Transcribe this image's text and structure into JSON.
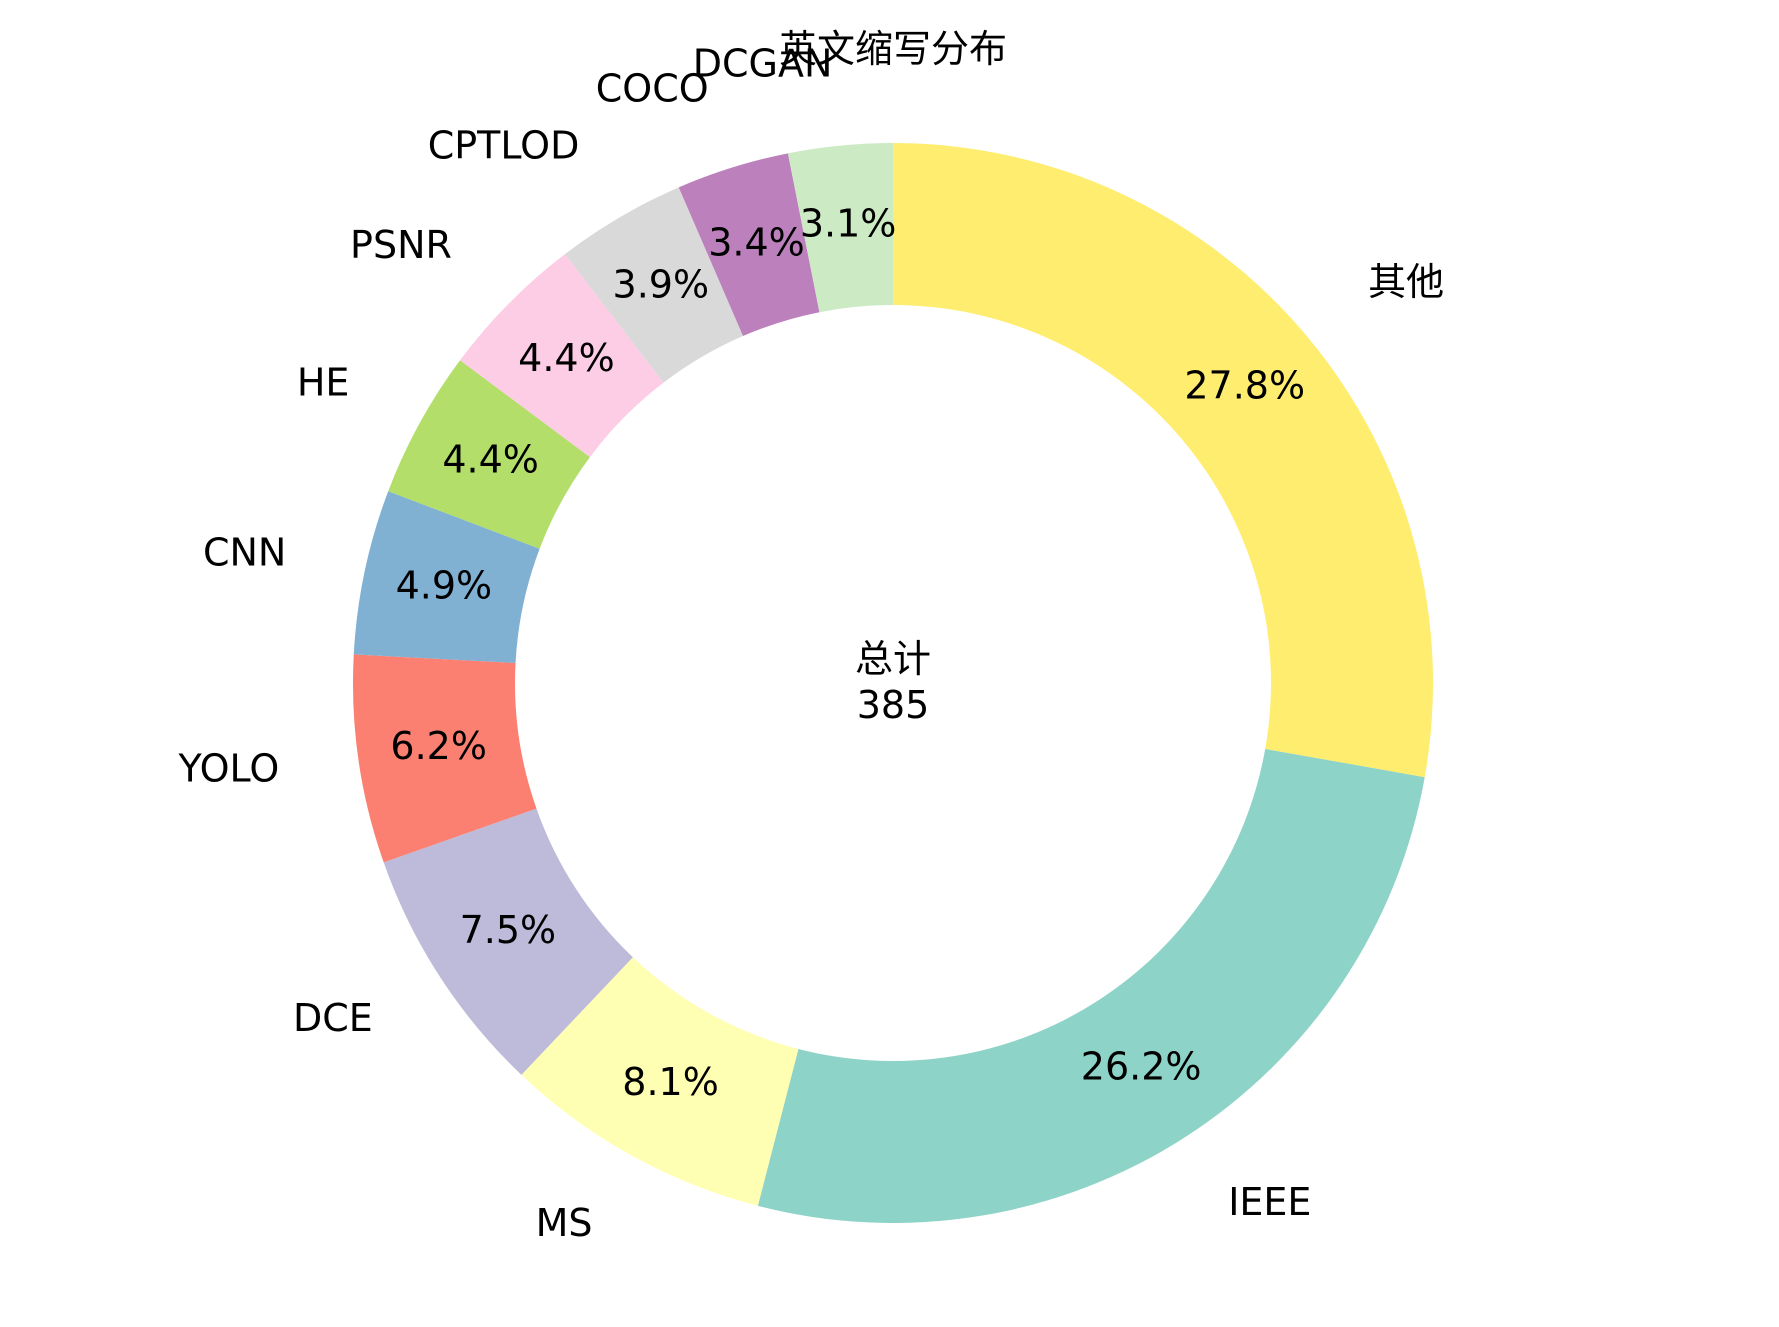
{
  "chart_data": {
    "type": "pie",
    "variant": "donut",
    "title": "英文缩写分布",
    "center_label": "总计",
    "total": "385",
    "categories": [
      "其他",
      "IEEE",
      "MS",
      "DCE",
      "YOLO",
      "CNN",
      "HE",
      "PSNR",
      "CPTLOD",
      "COCO",
      "DCGAN"
    ],
    "values": [
      107,
      101,
      31,
      29,
      24,
      19,
      17,
      17,
      15,
      13,
      12
    ],
    "percent_labels": [
      "27.8%",
      "26.2%",
      "8.1%",
      "7.5%",
      "6.2%",
      "4.9%",
      "4.4%",
      "4.4%",
      "3.9%",
      "3.4%",
      "3.1%"
    ],
    "colors": [
      "#ffed6f",
      "#8dd3c7",
      "#ffffb3",
      "#bebada",
      "#fb8072",
      "#80b1d3",
      "#b3de69",
      "#fccde5",
      "#d9d9d9",
      "#bc80bd",
      "#ccebc5"
    ],
    "start_angle_deg": 90,
    "direction": "clockwise",
    "legend": "none"
  }
}
